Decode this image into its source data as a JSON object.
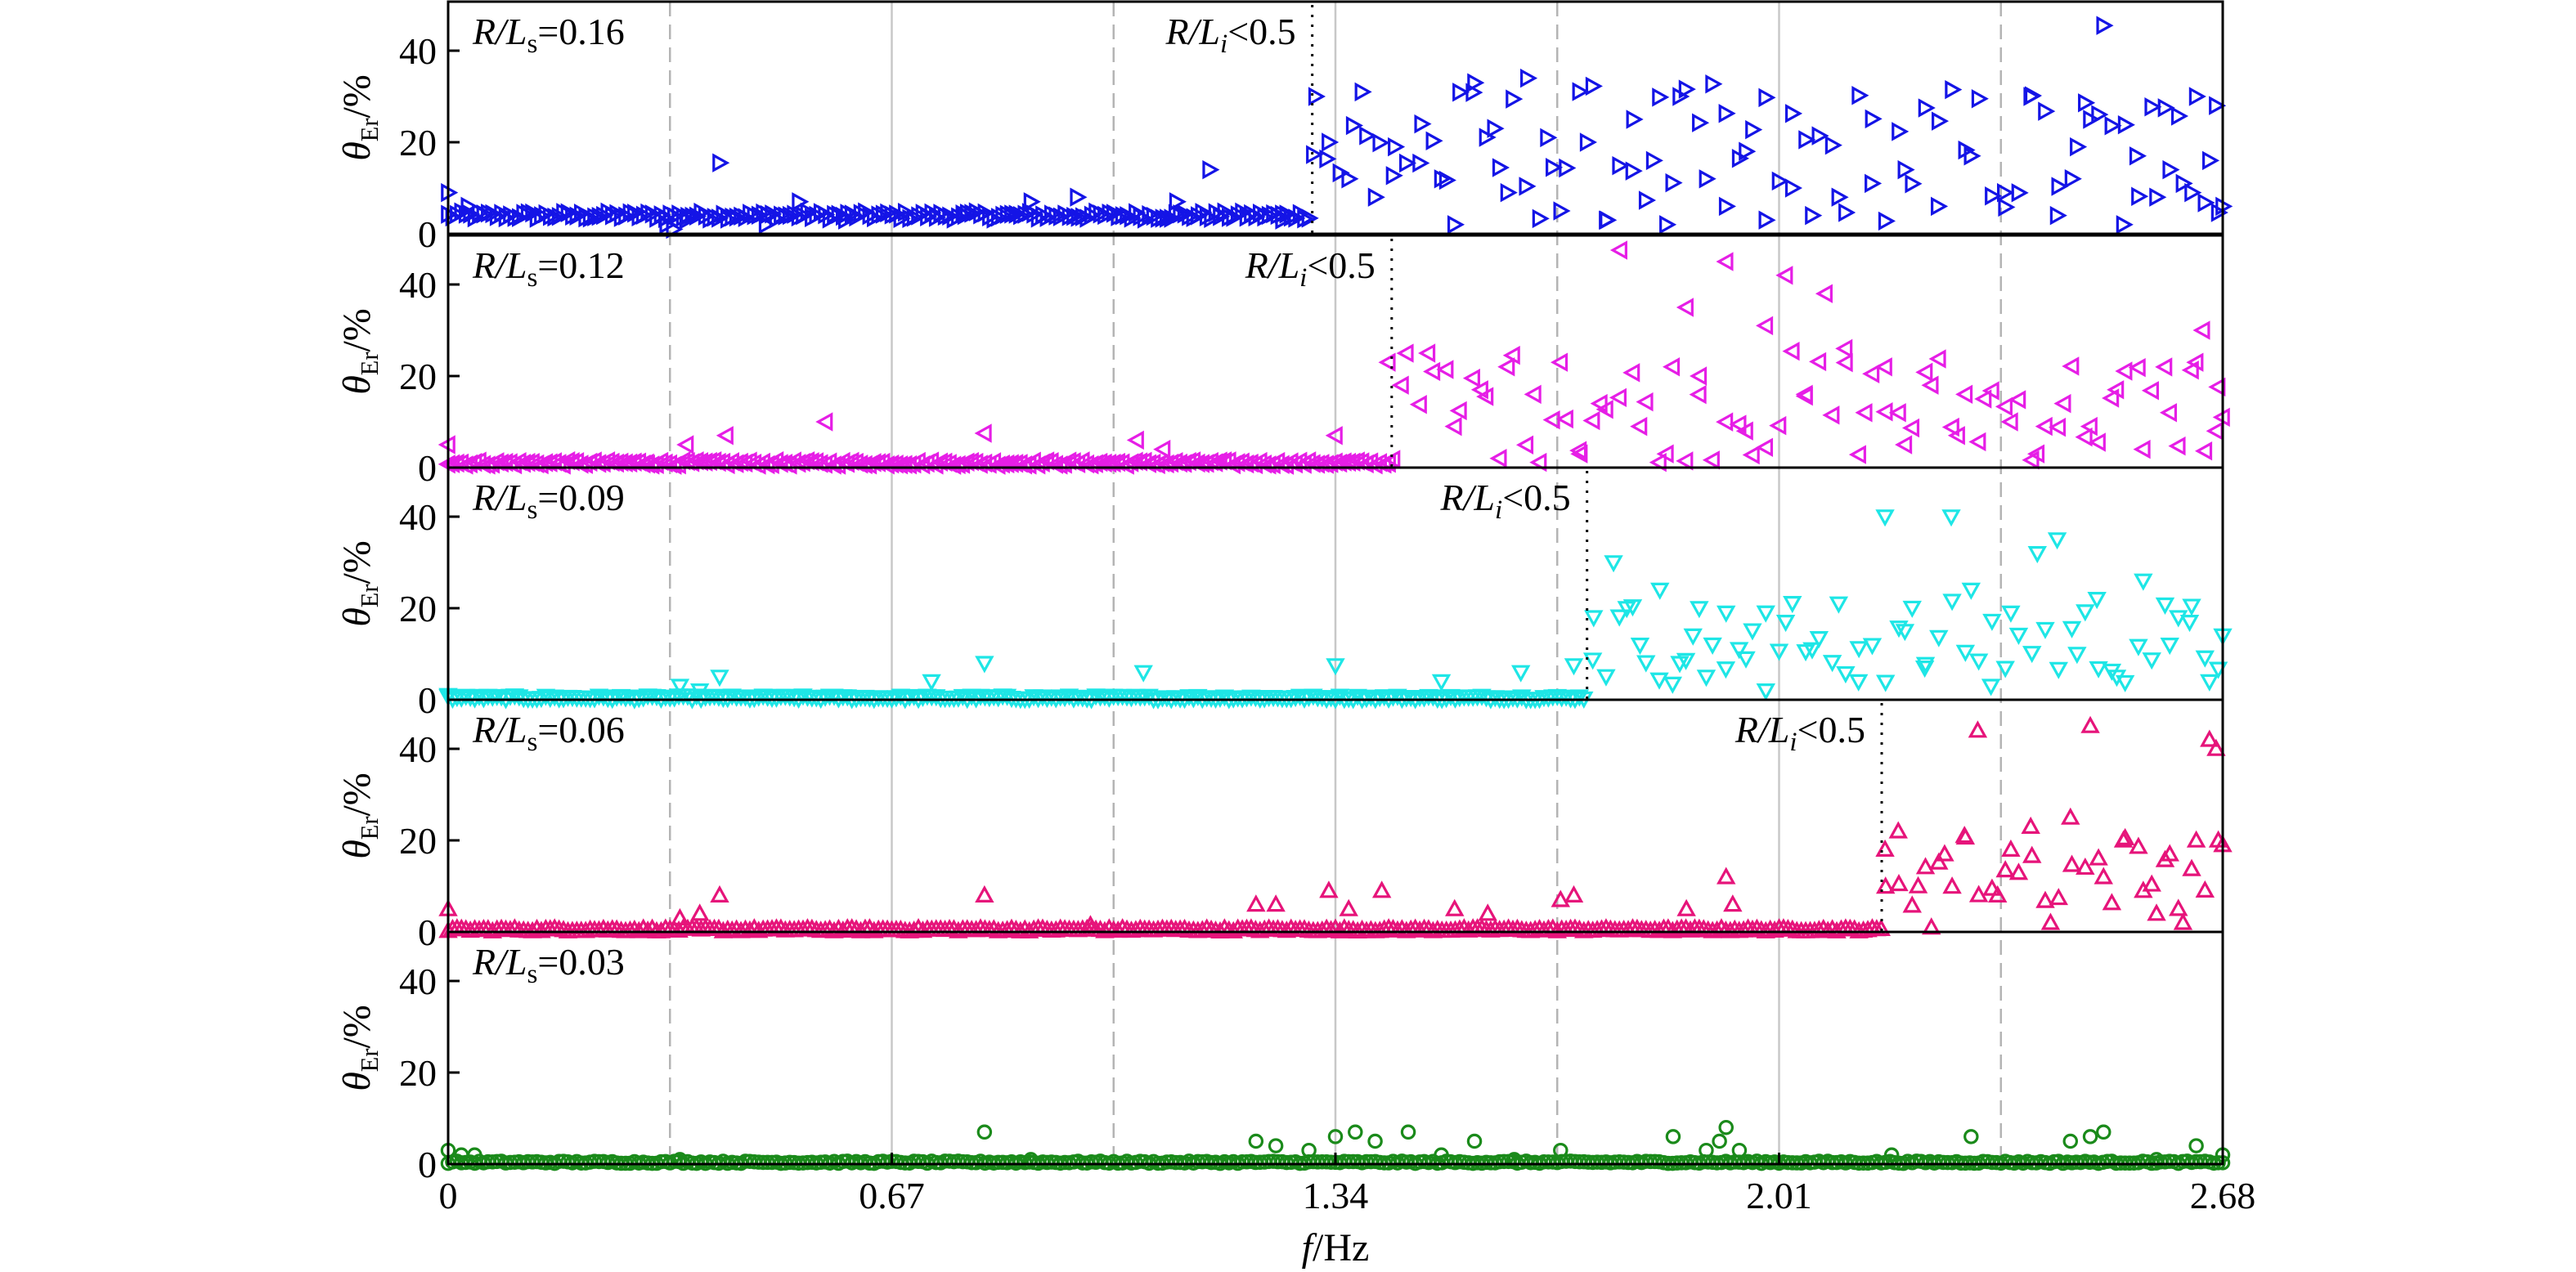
{
  "chart_data": {
    "type": "scatter",
    "layout": "5 vertically stacked panels sharing the x axis",
    "xlabel": {
      "italic": "f",
      "rest": "/Hz"
    },
    "x_ticks": [
      0,
      0.67,
      1.34,
      2.01,
      2.68
    ],
    "x_tick_labels": [
      "0",
      "0.67",
      "1.34",
      "2.01",
      "2.68"
    ],
    "xlim": [
      0,
      2.68
    ],
    "ylabel": {
      "italic": "θ",
      "sub": "Er",
      "rest": "/%"
    },
    "y_ticks": [
      0,
      20,
      40
    ],
    "y_tick_labels": [
      "0",
      "20",
      "40"
    ],
    "ylim": [
      0,
      50
    ],
    "grid": {
      "solid_x": [
        0.67,
        1.34,
        2.01
      ],
      "dashed_x": [
        0.335,
        1.005,
        1.675,
        2.345
      ]
    },
    "panels": [
      {
        "label_prefix": "R/L",
        "label_sub": "s",
        "label_value": "=0.16",
        "marker": "triangle-right",
        "color": "#1414e6",
        "threshold_label": "R/Li<0.5",
        "threshold_text": {
          "a": "R/L",
          "b": "i",
          "c": "<0.5"
        },
        "threshold_x": 1.305,
        "baseline": 4,
        "jitter": 1.6,
        "onset_x": 1.305,
        "high_min": 2,
        "high_max": 33,
        "points": [
          [
            0.0,
            9
          ],
          [
            0.03,
            6
          ],
          [
            0.33,
            2
          ],
          [
            0.34,
            1
          ],
          [
            0.36,
            3
          ],
          [
            0.41,
            15.5
          ],
          [
            0.48,
            2
          ],
          [
            0.53,
            7
          ],
          [
            0.6,
            3
          ],
          [
            0.78,
            4
          ],
          [
            0.88,
            7
          ],
          [
            0.95,
            8
          ],
          [
            1.1,
            7
          ],
          [
            1.15,
            14
          ],
          [
            1.26,
            3
          ],
          [
            1.31,
            30
          ],
          [
            1.33,
            20
          ],
          [
            1.36,
            12
          ],
          [
            1.38,
            31
          ],
          [
            1.4,
            8
          ],
          [
            1.43,
            19
          ],
          [
            1.47,
            24
          ],
          [
            1.5,
            12
          ],
          [
            1.52,
            2
          ],
          [
            1.55,
            33
          ],
          [
            1.58,
            23
          ],
          [
            1.6,
            9
          ],
          [
            1.63,
            34
          ],
          [
            1.66,
            21
          ],
          [
            1.68,
            5
          ],
          [
            1.72,
            20
          ],
          [
            1.75,
            3
          ],
          [
            1.79,
            25
          ],
          [
            1.82,
            16
          ],
          [
            1.84,
            2
          ],
          [
            1.86,
            30
          ],
          [
            1.9,
            12
          ],
          [
            1.93,
            6
          ],
          [
            1.96,
            18
          ],
          [
            1.99,
            3
          ],
          [
            2.03,
            10
          ],
          [
            2.06,
            4
          ],
          [
            2.1,
            8
          ],
          [
            2.15,
            11
          ],
          [
            2.2,
            14
          ],
          [
            2.25,
            6
          ],
          [
            2.3,
            17
          ],
          [
            2.35,
            9
          ],
          [
            2.39,
            30
          ],
          [
            2.43,
            4
          ],
          [
            2.46,
            19
          ],
          [
            2.48,
            25
          ],
          [
            2.5,
            45.5
          ],
          [
            2.53,
            2
          ],
          [
            2.55,
            17
          ],
          [
            2.58,
            8
          ],
          [
            2.6,
            14
          ],
          [
            2.62,
            11
          ],
          [
            2.64,
            30
          ],
          [
            2.66,
            16
          ],
          [
            2.67,
            28
          ],
          [
            2.68,
            6
          ]
        ]
      },
      {
        "label_prefix": "R/L",
        "label_sub": "s",
        "label_value": "=0.12",
        "marker": "triangle-left",
        "color": "#e61ee6",
        "threshold_label": "R/Li<0.5",
        "threshold_text": {
          "a": "R/L",
          "b": "i",
          "c": "<0.5"
        },
        "threshold_x": 1.425,
        "baseline": 1,
        "jitter": 1.0,
        "onset_x": 1.425,
        "high_min": 1,
        "high_max": 26,
        "points": [
          [
            0.0,
            5
          ],
          [
            0.3,
            1
          ],
          [
            0.36,
            5
          ],
          [
            0.42,
            7
          ],
          [
            0.57,
            10
          ],
          [
            0.81,
            7.5
          ],
          [
            1.04,
            6
          ],
          [
            1.08,
            4
          ],
          [
            1.34,
            7
          ],
          [
            1.42,
            23
          ],
          [
            1.44,
            18
          ],
          [
            1.48,
            25
          ],
          [
            1.52,
            9
          ],
          [
            1.56,
            17
          ],
          [
            1.6,
            22
          ],
          [
            1.64,
            16
          ],
          [
            1.68,
            23
          ],
          [
            1.71,
            3
          ],
          [
            1.74,
            14
          ],
          [
            1.77,
            47.5
          ],
          [
            1.8,
            9
          ],
          [
            1.84,
            3
          ],
          [
            1.87,
            35
          ],
          [
            1.89,
            20
          ],
          [
            1.93,
            45
          ],
          [
            1.96,
            8
          ],
          [
            1.99,
            31
          ],
          [
            2.02,
            42
          ],
          [
            2.05,
            16
          ],
          [
            2.08,
            38
          ],
          [
            2.11,
            26
          ],
          [
            2.14,
            12
          ],
          [
            2.17,
            22
          ],
          [
            2.2,
            5
          ],
          [
            2.24,
            18
          ],
          [
            2.28,
            7
          ],
          [
            2.32,
            15
          ],
          [
            2.36,
            10
          ],
          [
            2.4,
            3
          ],
          [
            2.44,
            14
          ],
          [
            2.48,
            9
          ],
          [
            2.52,
            17
          ],
          [
            2.56,
            4
          ],
          [
            2.6,
            12
          ],
          [
            2.64,
            23
          ],
          [
            2.65,
            30
          ],
          [
            2.67,
            8
          ],
          [
            2.68,
            11
          ]
        ]
      },
      {
        "label_prefix": "R/L",
        "label_sub": "s",
        "label_value": "=0.09",
        "marker": "triangle-down",
        "color": "#1ee6e6",
        "threshold_label": "R/Li<0.5",
        "threshold_text": {
          "a": "R/L",
          "b": "i",
          "c": "<0.5"
        },
        "threshold_x": 1.72,
        "baseline": 0.5,
        "jitter": 0.8,
        "onset_x": 1.72,
        "high_min": 3,
        "high_max": 22,
        "points": [
          [
            0.0,
            1
          ],
          [
            0.35,
            3
          ],
          [
            0.38,
            2
          ],
          [
            0.41,
            5
          ],
          [
            0.73,
            4
          ],
          [
            0.81,
            8
          ],
          [
            1.05,
            6
          ],
          [
            1.34,
            7.5
          ],
          [
            1.5,
            4
          ],
          [
            1.62,
            6
          ],
          [
            1.7,
            7.5
          ],
          [
            1.73,
            18
          ],
          [
            1.76,
            30
          ],
          [
            1.78,
            20
          ],
          [
            1.8,
            12
          ],
          [
            1.83,
            24
          ],
          [
            1.86,
            8
          ],
          [
            1.88,
            14
          ],
          [
            1.9,
            5
          ],
          [
            1.93,
            19
          ],
          [
            1.96,
            9
          ],
          [
            1.99,
            2
          ],
          [
            2.02,
            17
          ],
          [
            2.06,
            11
          ],
          [
            2.1,
            21
          ],
          [
            2.13,
            4
          ],
          [
            2.17,
            40
          ],
          [
            2.2,
            15
          ],
          [
            2.23,
            7
          ],
          [
            2.27,
            40
          ],
          [
            2.3,
            24
          ],
          [
            2.33,
            3
          ],
          [
            2.36,
            19
          ],
          [
            2.4,
            32
          ],
          [
            2.43,
            35
          ],
          [
            2.46,
            10
          ],
          [
            2.49,
            22
          ],
          [
            2.52,
            5
          ],
          [
            2.56,
            26
          ],
          [
            2.6,
            12
          ],
          [
            2.63,
            17
          ],
          [
            2.66,
            4
          ],
          [
            2.68,
            14
          ]
        ]
      },
      {
        "label_prefix": "R/L",
        "label_sub": "s",
        "label_value": "=0.06",
        "marker": "triangle-up",
        "color": "#e6147a",
        "threshold_label": "R/Li<0.5",
        "threshold_text": {
          "a": "R/L",
          "b": "i",
          "c": "<0.5"
        },
        "threshold_x": 2.165,
        "baseline": 0.5,
        "jitter": 0.7,
        "onset_x": 2.165,
        "high_min": 5,
        "high_max": 22,
        "points": [
          [
            0.0,
            5
          ],
          [
            0.35,
            3
          ],
          [
            0.38,
            4
          ],
          [
            0.41,
            8
          ],
          [
            0.81,
            8
          ],
          [
            0.97,
            1.5
          ],
          [
            1.22,
            6
          ],
          [
            1.25,
            6
          ],
          [
            1.33,
            9
          ],
          [
            1.36,
            5
          ],
          [
            1.41,
            9
          ],
          [
            1.52,
            5
          ],
          [
            1.57,
            4
          ],
          [
            1.68,
            7
          ],
          [
            1.7,
            8
          ],
          [
            1.87,
            5
          ],
          [
            1.93,
            12
          ],
          [
            1.94,
            6
          ],
          [
            2.17,
            18
          ],
          [
            2.19,
            22
          ],
          [
            2.22,
            10
          ],
          [
            2.24,
            1
          ],
          [
            2.26,
            17
          ],
          [
            2.29,
            21
          ],
          [
            2.31,
            44
          ],
          [
            2.34,
            8
          ],
          [
            2.36,
            18
          ],
          [
            2.39,
            23
          ],
          [
            2.42,
            2
          ],
          [
            2.45,
            25
          ],
          [
            2.48,
            45
          ],
          [
            2.5,
            12
          ],
          [
            2.53,
            20
          ],
          [
            2.56,
            9
          ],
          [
            2.58,
            4
          ],
          [
            2.6,
            17
          ],
          [
            2.62,
            2
          ],
          [
            2.64,
            20
          ],
          [
            2.66,
            42
          ],
          [
            2.67,
            40
          ],
          [
            2.68,
            19
          ]
        ]
      },
      {
        "label_prefix": "R/L",
        "label_sub": "s",
        "label_value": "=0.03",
        "marker": "circle",
        "color": "#1a8a1a",
        "threshold_label": "",
        "threshold_text": null,
        "threshold_x": null,
        "baseline": 0.4,
        "jitter": 0.5,
        "onset_x": null,
        "high_min": 0,
        "high_max": 0,
        "points": [
          [
            0.0,
            3
          ],
          [
            0.02,
            2
          ],
          [
            0.04,
            2
          ],
          [
            0.35,
            1
          ],
          [
            0.81,
            7
          ],
          [
            0.88,
            1
          ],
          [
            1.22,
            5
          ],
          [
            1.25,
            4
          ],
          [
            1.3,
            3
          ],
          [
            1.34,
            6
          ],
          [
            1.37,
            7
          ],
          [
            1.4,
            5
          ],
          [
            1.45,
            7
          ],
          [
            1.5,
            2
          ],
          [
            1.55,
            5
          ],
          [
            1.61,
            1
          ],
          [
            1.68,
            3
          ],
          [
            1.85,
            6
          ],
          [
            1.9,
            3
          ],
          [
            1.92,
            5
          ],
          [
            1.93,
            8
          ],
          [
            1.95,
            3
          ],
          [
            2.18,
            2
          ],
          [
            2.3,
            6
          ],
          [
            2.45,
            5
          ],
          [
            2.48,
            6
          ],
          [
            2.5,
            7
          ],
          [
            2.58,
            1
          ],
          [
            2.64,
            4
          ],
          [
            2.68,
            2
          ]
        ]
      }
    ]
  }
}
